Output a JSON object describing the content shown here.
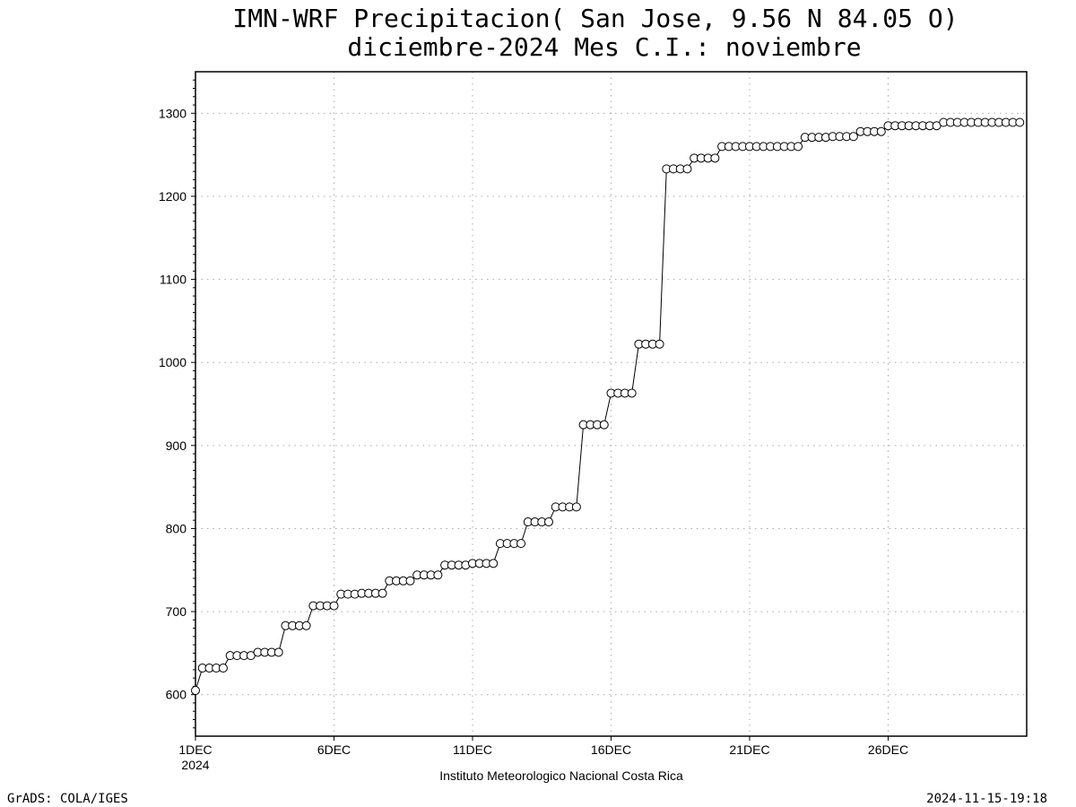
{
  "chart_data": {
    "type": "line",
    "title": "IMN-WRF  Precipitacion( San Jose, 9.56  N 84.05  O)",
    "subtitle": "diciembre-2024 Mes C.I.: noviembre",
    "xlabel": "Instituto Meteorologico Nacional Costa Rica",
    "ylabel": "",
    "ylim": [
      550,
      1350
    ],
    "xlim": [
      1,
      31
    ],
    "grid": true,
    "yticks": [
      600,
      700,
      800,
      900,
      1000,
      1100,
      1200,
      1300
    ],
    "xticks": [
      {
        "day": 1,
        "label": "1DEC",
        "sublabel": "2024"
      },
      {
        "day": 6,
        "label": "6DEC",
        "sublabel": ""
      },
      {
        "day": 11,
        "label": "11DEC",
        "sublabel": ""
      },
      {
        "day": 16,
        "label": "16DEC",
        "sublabel": ""
      },
      {
        "day": 21,
        "label": "21DEC",
        "sublabel": ""
      },
      {
        "day": 26,
        "label": "26DEC",
        "sublabel": ""
      }
    ],
    "marker": "open-circle",
    "series": [
      {
        "x_start_day": 1,
        "x_step_days": 0.25,
        "values": [
          605,
          632,
          632,
          632,
          632,
          647,
          647,
          647,
          647,
          651,
          651,
          651,
          651,
          683,
          683,
          683,
          683,
          707,
          707,
          707,
          707,
          721,
          721,
          721,
          722,
          722,
          722,
          722,
          737,
          737,
          737,
          737,
          744,
          744,
          744,
          744,
          756,
          756,
          756,
          756,
          758,
          758,
          758,
          758,
          782,
          782,
          782,
          782,
          808,
          808,
          808,
          808,
          826,
          826,
          826,
          826,
          925,
          925,
          925,
          925,
          963,
          963,
          963,
          963,
          1022,
          1022,
          1022,
          1022,
          1233,
          1233,
          1233,
          1233,
          1246,
          1246,
          1246,
          1246,
          1260,
          1260,
          1260,
          1260,
          1260,
          1260,
          1260,
          1260,
          1260,
          1260,
          1260,
          1260,
          1271,
          1271,
          1271,
          1271,
          1272,
          1272,
          1272,
          1272,
          1278,
          1278,
          1278,
          1278,
          1285,
          1285,
          1285,
          1285,
          1285,
          1285,
          1285,
          1285,
          1289,
          1289,
          1289,
          1289,
          1289,
          1289,
          1289,
          1289,
          1289,
          1289,
          1289,
          1289
        ]
      }
    ]
  },
  "footer": {
    "left": "GrADS: COLA/IGES",
    "right": "2024-11-15-19:18"
  }
}
